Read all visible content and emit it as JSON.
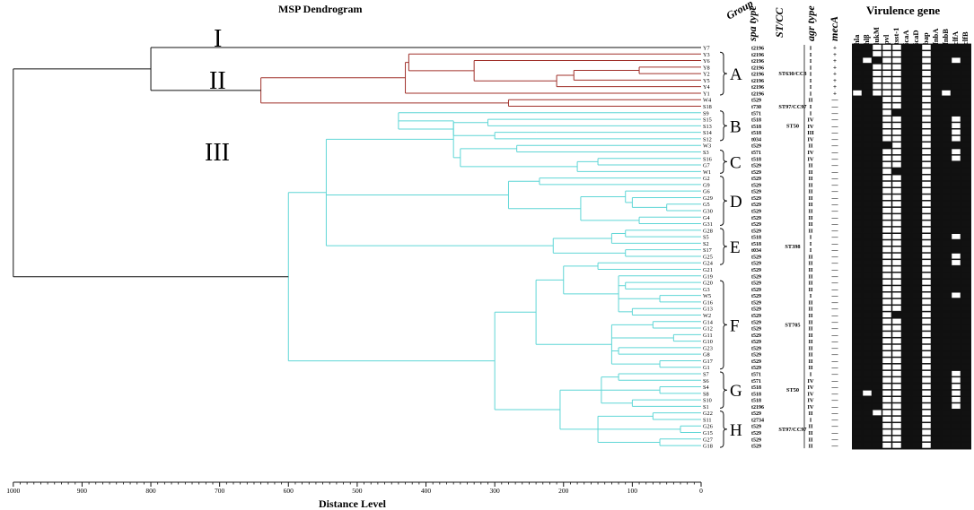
{
  "title": "MSP Dendrogram",
  "x_axis": {
    "label": "Distance Level",
    "ticks": [
      "1000",
      "900",
      "800",
      "700",
      "600",
      "500",
      "400",
      "300",
      "200",
      "100",
      "0"
    ]
  },
  "clusters": {
    "I": "I",
    "II": "II",
    "III": "III"
  },
  "column_headers": {
    "group": "Group",
    "spa": "spa type",
    "stcc": "ST/CC",
    "agr": "agr type",
    "meca": "mecA",
    "virulence": "Virulence gene"
  },
  "genes": [
    "hla",
    "hlβ",
    "lukM",
    "pvl",
    "tsst-1",
    "icaA",
    "icaD",
    "bap",
    "fnbA",
    "fnbB",
    "clfA",
    "clfB"
  ],
  "groups": [
    {
      "label": "A",
      "st": "ST630/CC8"
    },
    {
      "label": "B",
      "st": "ST50"
    },
    {
      "label": "C",
      "st": ""
    },
    {
      "label": "D",
      "st": ""
    },
    {
      "label": "E",
      "st": "ST398"
    },
    {
      "label": "F",
      "st": "ST705"
    },
    {
      "label": "G",
      "st": "ST50"
    },
    {
      "label": "H",
      "st": "ST97/CC97"
    }
  ],
  "extra_st": "ST97/CC97",
  "strains": [
    {
      "name": "Y7",
      "spa": "t2196",
      "agr": "I",
      "meca": "+",
      "genes": [
        1,
        1,
        0,
        0,
        0,
        1,
        1,
        0,
        1,
        1,
        1,
        1
      ]
    },
    {
      "name": "Y3",
      "spa": "t2196",
      "agr": "I",
      "meca": "+",
      "genes": [
        1,
        1,
        0,
        0,
        0,
        1,
        1,
        0,
        1,
        1,
        1,
        1
      ]
    },
    {
      "name": "Y6",
      "spa": "t2196",
      "agr": "I",
      "meca": "+",
      "genes": [
        1,
        0,
        1,
        0,
        0,
        1,
        1,
        0,
        1,
        1,
        0,
        1
      ]
    },
    {
      "name": "Y8",
      "spa": "t2196",
      "agr": "I",
      "meca": "+",
      "genes": [
        1,
        1,
        0,
        0,
        0,
        1,
        1,
        0,
        1,
        1,
        1,
        1
      ]
    },
    {
      "name": "Y2",
      "spa": "t2196",
      "agr": "I",
      "meca": "+",
      "genes": [
        1,
        1,
        0,
        0,
        0,
        1,
        1,
        0,
        1,
        1,
        1,
        1
      ]
    },
    {
      "name": "Y5",
      "spa": "t2196",
      "agr": "I",
      "meca": "+",
      "genes": [
        1,
        1,
        0,
        0,
        0,
        1,
        1,
        0,
        1,
        1,
        1,
        1
      ]
    },
    {
      "name": "Y4",
      "spa": "t2196",
      "agr": "I",
      "meca": "+",
      "genes": [
        1,
        1,
        0,
        0,
        0,
        1,
        1,
        0,
        1,
        1,
        1,
        1
      ]
    },
    {
      "name": "Y1",
      "spa": "t2196",
      "agr": "I",
      "meca": "+",
      "genes": [
        0,
        1,
        0,
        0,
        0,
        1,
        1,
        0,
        1,
        0,
        1,
        1
      ]
    },
    {
      "name": "W4",
      "spa": "t529",
      "agr": "II",
      "meca": "—",
      "genes": [
        1,
        1,
        1,
        0,
        0,
        1,
        1,
        0,
        1,
        1,
        1,
        1
      ]
    },
    {
      "name": "S18",
      "spa": "t730",
      "agr": "I",
      "meca": "—",
      "genes": [
        1,
        1,
        1,
        0,
        0,
        1,
        1,
        0,
        1,
        1,
        1,
        1
      ]
    },
    {
      "name": "S9",
      "spa": "t571",
      "agr": "I",
      "meca": "—",
      "genes": [
        1,
        1,
        1,
        0,
        1,
        1,
        1,
        0,
        1,
        1,
        1,
        1
      ]
    },
    {
      "name": "S15",
      "spa": "t518",
      "agr": "IV",
      "meca": "—",
      "genes": [
        1,
        1,
        1,
        0,
        0,
        1,
        1,
        0,
        1,
        1,
        0,
        1
      ]
    },
    {
      "name": "S13",
      "spa": "t518",
      "agr": "IV",
      "meca": "—",
      "genes": [
        1,
        1,
        1,
        0,
        0,
        1,
        1,
        0,
        1,
        1,
        0,
        1
      ]
    },
    {
      "name": "S14",
      "spa": "t518",
      "agr": "III",
      "meca": "—",
      "genes": [
        1,
        1,
        1,
        0,
        0,
        1,
        1,
        0,
        1,
        1,
        0,
        1
      ]
    },
    {
      "name": "S12",
      "spa": "t034",
      "agr": "IV",
      "meca": "—",
      "genes": [
        1,
        1,
        1,
        0,
        0,
        1,
        1,
        0,
        1,
        1,
        0,
        1
      ]
    },
    {
      "name": "W3",
      "spa": "t529",
      "agr": "II",
      "meca": "—",
      "genes": [
        1,
        1,
        1,
        1,
        0,
        1,
        1,
        0,
        1,
        1,
        1,
        1
      ]
    },
    {
      "name": "S3",
      "spa": "t571",
      "agr": "IV",
      "meca": "—",
      "genes": [
        1,
        1,
        1,
        0,
        0,
        1,
        1,
        0,
        1,
        1,
        0,
        1
      ]
    },
    {
      "name": "S16",
      "spa": "t518",
      "agr": "IV",
      "meca": "—",
      "genes": [
        1,
        1,
        1,
        0,
        0,
        1,
        1,
        0,
        1,
        1,
        0,
        1
      ]
    },
    {
      "name": "G7",
      "spa": "t529",
      "agr": "II",
      "meca": "—",
      "genes": [
        1,
        1,
        1,
        0,
        0,
        1,
        1,
        0,
        1,
        1,
        1,
        1
      ]
    },
    {
      "name": "W1",
      "spa": "t529",
      "agr": "II",
      "meca": "—",
      "genes": [
        1,
        1,
        1,
        0,
        1,
        1,
        1,
        0,
        1,
        1,
        1,
        1
      ]
    },
    {
      "name": "G2",
      "spa": "t529",
      "agr": "II",
      "meca": "—",
      "genes": [
        1,
        1,
        1,
        0,
        0,
        1,
        1,
        0,
        1,
        1,
        1,
        1
      ]
    },
    {
      "name": "G9",
      "spa": "t529",
      "agr": "II",
      "meca": "—",
      "genes": [
        1,
        1,
        1,
        0,
        0,
        1,
        1,
        0,
        1,
        1,
        1,
        1
      ]
    },
    {
      "name": "G6",
      "spa": "t529",
      "agr": "II",
      "meca": "—",
      "genes": [
        1,
        1,
        1,
        0,
        0,
        1,
        1,
        0,
        1,
        1,
        1,
        1
      ]
    },
    {
      "name": "G29",
      "spa": "t529",
      "agr": "II",
      "meca": "—",
      "genes": [
        1,
        1,
        1,
        0,
        0,
        1,
        1,
        0,
        1,
        1,
        1,
        1
      ]
    },
    {
      "name": "G5",
      "spa": "t529",
      "agr": "II",
      "meca": "—",
      "genes": [
        1,
        1,
        1,
        0,
        0,
        1,
        1,
        0,
        1,
        1,
        1,
        1
      ]
    },
    {
      "name": "G30",
      "spa": "t529",
      "agr": "II",
      "meca": "—",
      "genes": [
        1,
        1,
        1,
        0,
        0,
        1,
        1,
        0,
        1,
        1,
        1,
        1
      ]
    },
    {
      "name": "G4",
      "spa": "t529",
      "agr": "II",
      "meca": "—",
      "genes": [
        1,
        1,
        1,
        0,
        0,
        1,
        1,
        0,
        1,
        1,
        1,
        1
      ]
    },
    {
      "name": "G31",
      "spa": "t529",
      "agr": "II",
      "meca": "—",
      "genes": [
        1,
        1,
        1,
        0,
        0,
        1,
        1,
        0,
        1,
        1,
        1,
        1
      ]
    },
    {
      "name": "G28",
      "spa": "t529",
      "agr": "II",
      "meca": "—",
      "genes": [
        1,
        1,
        1,
        0,
        0,
        1,
        1,
        0,
        1,
        1,
        1,
        1
      ]
    },
    {
      "name": "S5",
      "spa": "t518",
      "agr": "I",
      "meca": "—",
      "genes": [
        1,
        1,
        1,
        0,
        0,
        1,
        1,
        0,
        1,
        1,
        0,
        1
      ]
    },
    {
      "name": "S2",
      "spa": "t518",
      "agr": "I",
      "meca": "—",
      "genes": [
        1,
        1,
        1,
        0,
        0,
        1,
        1,
        0,
        1,
        1,
        1,
        1
      ]
    },
    {
      "name": "S17",
      "spa": "t034",
      "agr": "I",
      "meca": "—",
      "genes": [
        1,
        1,
        1,
        0,
        0,
        1,
        1,
        0,
        1,
        1,
        1,
        1
      ]
    },
    {
      "name": "G25",
      "spa": "t529",
      "agr": "II",
      "meca": "—",
      "genes": [
        1,
        1,
        1,
        0,
        0,
        1,
        1,
        0,
        1,
        1,
        0,
        1
      ]
    },
    {
      "name": "G24",
      "spa": "t529",
      "agr": "II",
      "meca": "—",
      "genes": [
        1,
        1,
        1,
        0,
        0,
        1,
        1,
        0,
        1,
        1,
        0,
        1
      ]
    },
    {
      "name": "G21",
      "spa": "t529",
      "agr": "II",
      "meca": "—",
      "genes": [
        1,
        1,
        1,
        0,
        0,
        1,
        1,
        0,
        1,
        1,
        1,
        1
      ]
    },
    {
      "name": "G19",
      "spa": "t529",
      "agr": "II",
      "meca": "—",
      "genes": [
        1,
        1,
        1,
        0,
        0,
        1,
        1,
        0,
        1,
        1,
        1,
        1
      ]
    },
    {
      "name": "G20",
      "spa": "t529",
      "agr": "II",
      "meca": "—",
      "genes": [
        1,
        1,
        1,
        0,
        0,
        1,
        1,
        0,
        1,
        1,
        1,
        1
      ]
    },
    {
      "name": "G3",
      "spa": "t529",
      "agr": "II",
      "meca": "—",
      "genes": [
        1,
        1,
        1,
        0,
        0,
        1,
        1,
        0,
        1,
        1,
        1,
        1
      ]
    },
    {
      "name": "W5",
      "spa": "t529",
      "agr": "I",
      "meca": "—",
      "genes": [
        1,
        1,
        1,
        0,
        0,
        1,
        1,
        0,
        1,
        1,
        0,
        1
      ]
    },
    {
      "name": "G16",
      "spa": "t529",
      "agr": "II",
      "meca": "—",
      "genes": [
        1,
        1,
        1,
        0,
        0,
        1,
        1,
        0,
        1,
        1,
        1,
        1
      ]
    },
    {
      "name": "G13",
      "spa": "t529",
      "agr": "II",
      "meca": "—",
      "genes": [
        1,
        1,
        1,
        0,
        0,
        1,
        1,
        0,
        1,
        1,
        1,
        1
      ]
    },
    {
      "name": "W2",
      "spa": "t529",
      "agr": "II",
      "meca": "—",
      "genes": [
        1,
        1,
        1,
        0,
        1,
        1,
        1,
        0,
        1,
        1,
        1,
        1
      ]
    },
    {
      "name": "G14",
      "spa": "t529",
      "agr": "II",
      "meca": "—",
      "genes": [
        1,
        1,
        1,
        0,
        0,
        1,
        1,
        0,
        1,
        1,
        1,
        1
      ]
    },
    {
      "name": "G12",
      "spa": "t529",
      "agr": "II",
      "meca": "—",
      "genes": [
        1,
        1,
        1,
        0,
        0,
        1,
        1,
        0,
        1,
        1,
        1,
        1
      ]
    },
    {
      "name": "G11",
      "spa": "t529",
      "agr": "II",
      "meca": "—",
      "genes": [
        1,
        1,
        1,
        0,
        0,
        1,
        1,
        0,
        1,
        1,
        1,
        1
      ]
    },
    {
      "name": "G10",
      "spa": "t529",
      "agr": "II",
      "meca": "—",
      "genes": [
        1,
        1,
        1,
        0,
        0,
        1,
        1,
        0,
        1,
        1,
        1,
        1
      ]
    },
    {
      "name": "G23",
      "spa": "t529",
      "agr": "II",
      "meca": "—",
      "genes": [
        1,
        1,
        1,
        0,
        0,
        1,
        1,
        0,
        1,
        1,
        1,
        1
      ]
    },
    {
      "name": "G8",
      "spa": "t529",
      "agr": "II",
      "meca": "—",
      "genes": [
        1,
        1,
        1,
        0,
        0,
        1,
        1,
        0,
        1,
        1,
        1,
        1
      ]
    },
    {
      "name": "G17",
      "spa": "t529",
      "agr": "II",
      "meca": "—",
      "genes": [
        1,
        1,
        1,
        0,
        0,
        1,
        1,
        0,
        1,
        1,
        1,
        1
      ]
    },
    {
      "name": "G1",
      "spa": "t529",
      "agr": "II",
      "meca": "—",
      "genes": [
        1,
        1,
        1,
        0,
        0,
        1,
        1,
        0,
        1,
        1,
        1,
        1
      ]
    },
    {
      "name": "S7",
      "spa": "t571",
      "agr": "I",
      "meca": "—",
      "genes": [
        1,
        1,
        1,
        0,
        0,
        1,
        1,
        0,
        1,
        1,
        0,
        1
      ]
    },
    {
      "name": "S6",
      "spa": "t571",
      "agr": "IV",
      "meca": "—",
      "genes": [
        1,
        1,
        1,
        0,
        0,
        1,
        1,
        0,
        1,
        1,
        0,
        1
      ]
    },
    {
      "name": "S4",
      "spa": "t518",
      "agr": "IV",
      "meca": "—",
      "genes": [
        1,
        1,
        1,
        0,
        0,
        1,
        1,
        0,
        1,
        1,
        0,
        1
      ]
    },
    {
      "name": "S8",
      "spa": "t518",
      "agr": "IV",
      "meca": "—",
      "genes": [
        1,
        0,
        1,
        0,
        0,
        1,
        1,
        0,
        1,
        1,
        0,
        1
      ]
    },
    {
      "name": "S10",
      "spa": "t518",
      "agr": "IV",
      "meca": "—",
      "genes": [
        1,
        1,
        1,
        0,
        0,
        1,
        1,
        0,
        1,
        1,
        0,
        1
      ]
    },
    {
      "name": "S1",
      "spa": "t2196",
      "agr": "IV",
      "meca": "—",
      "genes": [
        1,
        1,
        1,
        0,
        0,
        1,
        1,
        0,
        1,
        1,
        0,
        1
      ]
    },
    {
      "name": "G22",
      "spa": "t529",
      "agr": "II",
      "meca": "—",
      "genes": [
        1,
        1,
        0,
        0,
        0,
        1,
        1,
        0,
        1,
        1,
        1,
        1
      ]
    },
    {
      "name": "S11",
      "spa": "t2734",
      "agr": "I",
      "meca": "—",
      "genes": [
        1,
        1,
        1,
        0,
        0,
        1,
        1,
        0,
        1,
        1,
        1,
        1
      ]
    },
    {
      "name": "G26",
      "spa": "t529",
      "agr": "II",
      "meca": "—",
      "genes": [
        1,
        1,
        1,
        0,
        0,
        1,
        1,
        0,
        1,
        1,
        1,
        1
      ]
    },
    {
      "name": "G15",
      "spa": "t529",
      "agr": "II",
      "meca": "—",
      "genes": [
        1,
        1,
        1,
        0,
        0,
        1,
        1,
        0,
        1,
        1,
        1,
        1
      ]
    },
    {
      "name": "G27",
      "spa": "t529",
      "agr": "II",
      "meca": "—",
      "genes": [
        1,
        1,
        1,
        0,
        0,
        1,
        1,
        0,
        1,
        1,
        1,
        1
      ]
    },
    {
      "name": "G18",
      "spa": "t529",
      "agr": "II",
      "meca": "—",
      "genes": [
        1,
        1,
        1,
        0,
        0,
        1,
        1,
        0,
        1,
        1,
        1,
        1
      ]
    }
  ],
  "colors": {
    "red": "#a0302a",
    "cyan": "#5fd6d6",
    "black": "#111111"
  }
}
